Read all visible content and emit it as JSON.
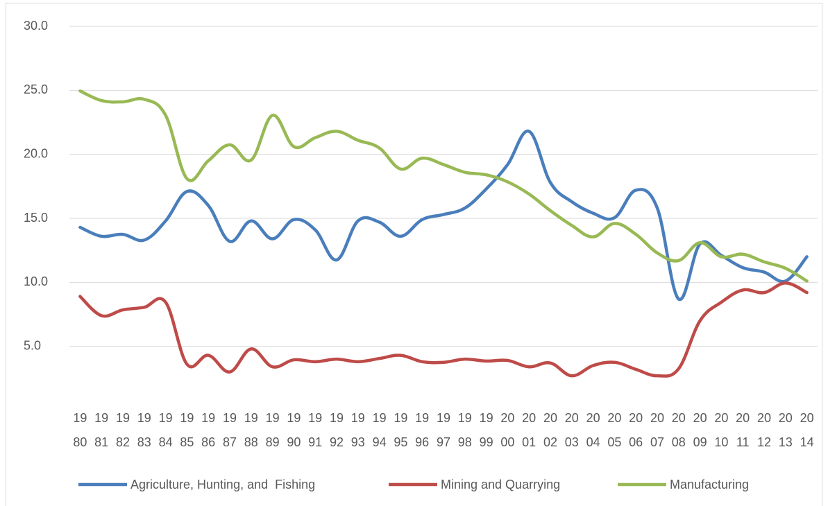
{
  "chart_data": {
    "type": "line",
    "categories": [
      "1980",
      "1981",
      "1982",
      "1983",
      "1984",
      "1985",
      "1986",
      "1987",
      "1988",
      "1989",
      "1990",
      "1991",
      "1992",
      "1993",
      "1994",
      "1995",
      "1996",
      "1997",
      "1998",
      "1999",
      "2000",
      "2001",
      "2002",
      "2003",
      "2004",
      "2005",
      "2006",
      "2007",
      "2008",
      "2009",
      "2010",
      "2011",
      "2012",
      "2013",
      "2014"
    ],
    "series": [
      {
        "name": "Agriculture, Hunting, and  Fishing",
        "color": "#4a7ebb",
        "values": [
          14.3,
          13.6,
          13.75,
          13.3,
          14.8,
          17.1,
          16.0,
          13.2,
          14.8,
          13.4,
          14.9,
          14.1,
          11.75,
          14.8,
          14.7,
          13.6,
          14.9,
          15.3,
          15.8,
          17.3,
          19.2,
          21.8,
          17.8,
          16.3,
          15.4,
          15.05,
          17.2,
          15.8,
          8.7,
          13.0,
          12.1,
          11.15,
          10.8,
          10.1,
          12.0
        ]
      },
      {
        "name": "Mining and Quarrying",
        "color": "#be4b48",
        "values": [
          8.9,
          7.4,
          7.85,
          8.05,
          8.45,
          3.6,
          4.3,
          3.0,
          4.8,
          3.4,
          3.95,
          3.8,
          4.0,
          3.8,
          4.05,
          4.3,
          3.8,
          3.75,
          4.0,
          3.85,
          3.9,
          3.4,
          3.7,
          2.7,
          3.5,
          3.75,
          3.2,
          2.7,
          3.25,
          7.0,
          8.45,
          9.4,
          9.2,
          9.95,
          9.2
        ]
      },
      {
        "name": "Manufacturing",
        "color": "#98b954",
        "values": [
          24.95,
          24.2,
          24.1,
          24.3,
          23.05,
          18.1,
          19.5,
          20.75,
          19.55,
          23.05,
          20.6,
          21.3,
          21.8,
          21.1,
          20.5,
          18.85,
          19.7,
          19.2,
          18.6,
          18.4,
          17.85,
          16.9,
          15.6,
          14.45,
          13.55,
          14.6,
          13.75,
          12.3,
          11.7,
          13.1,
          12.0,
          12.2,
          11.6,
          11.1,
          10.1
        ]
      }
    ],
    "ylim": [
      0,
      30
    ],
    "yticks": [
      {
        "value": 5,
        "label": "5.0"
      },
      {
        "value": 10,
        "label": "10.0"
      },
      {
        "value": 15,
        "label": "15.0"
      },
      {
        "value": 20,
        "label": "20.0"
      },
      {
        "value": 25,
        "label": "25.0"
      },
      {
        "value": 30,
        "label": "30.0"
      }
    ],
    "grid": true,
    "legend": "bottom"
  }
}
